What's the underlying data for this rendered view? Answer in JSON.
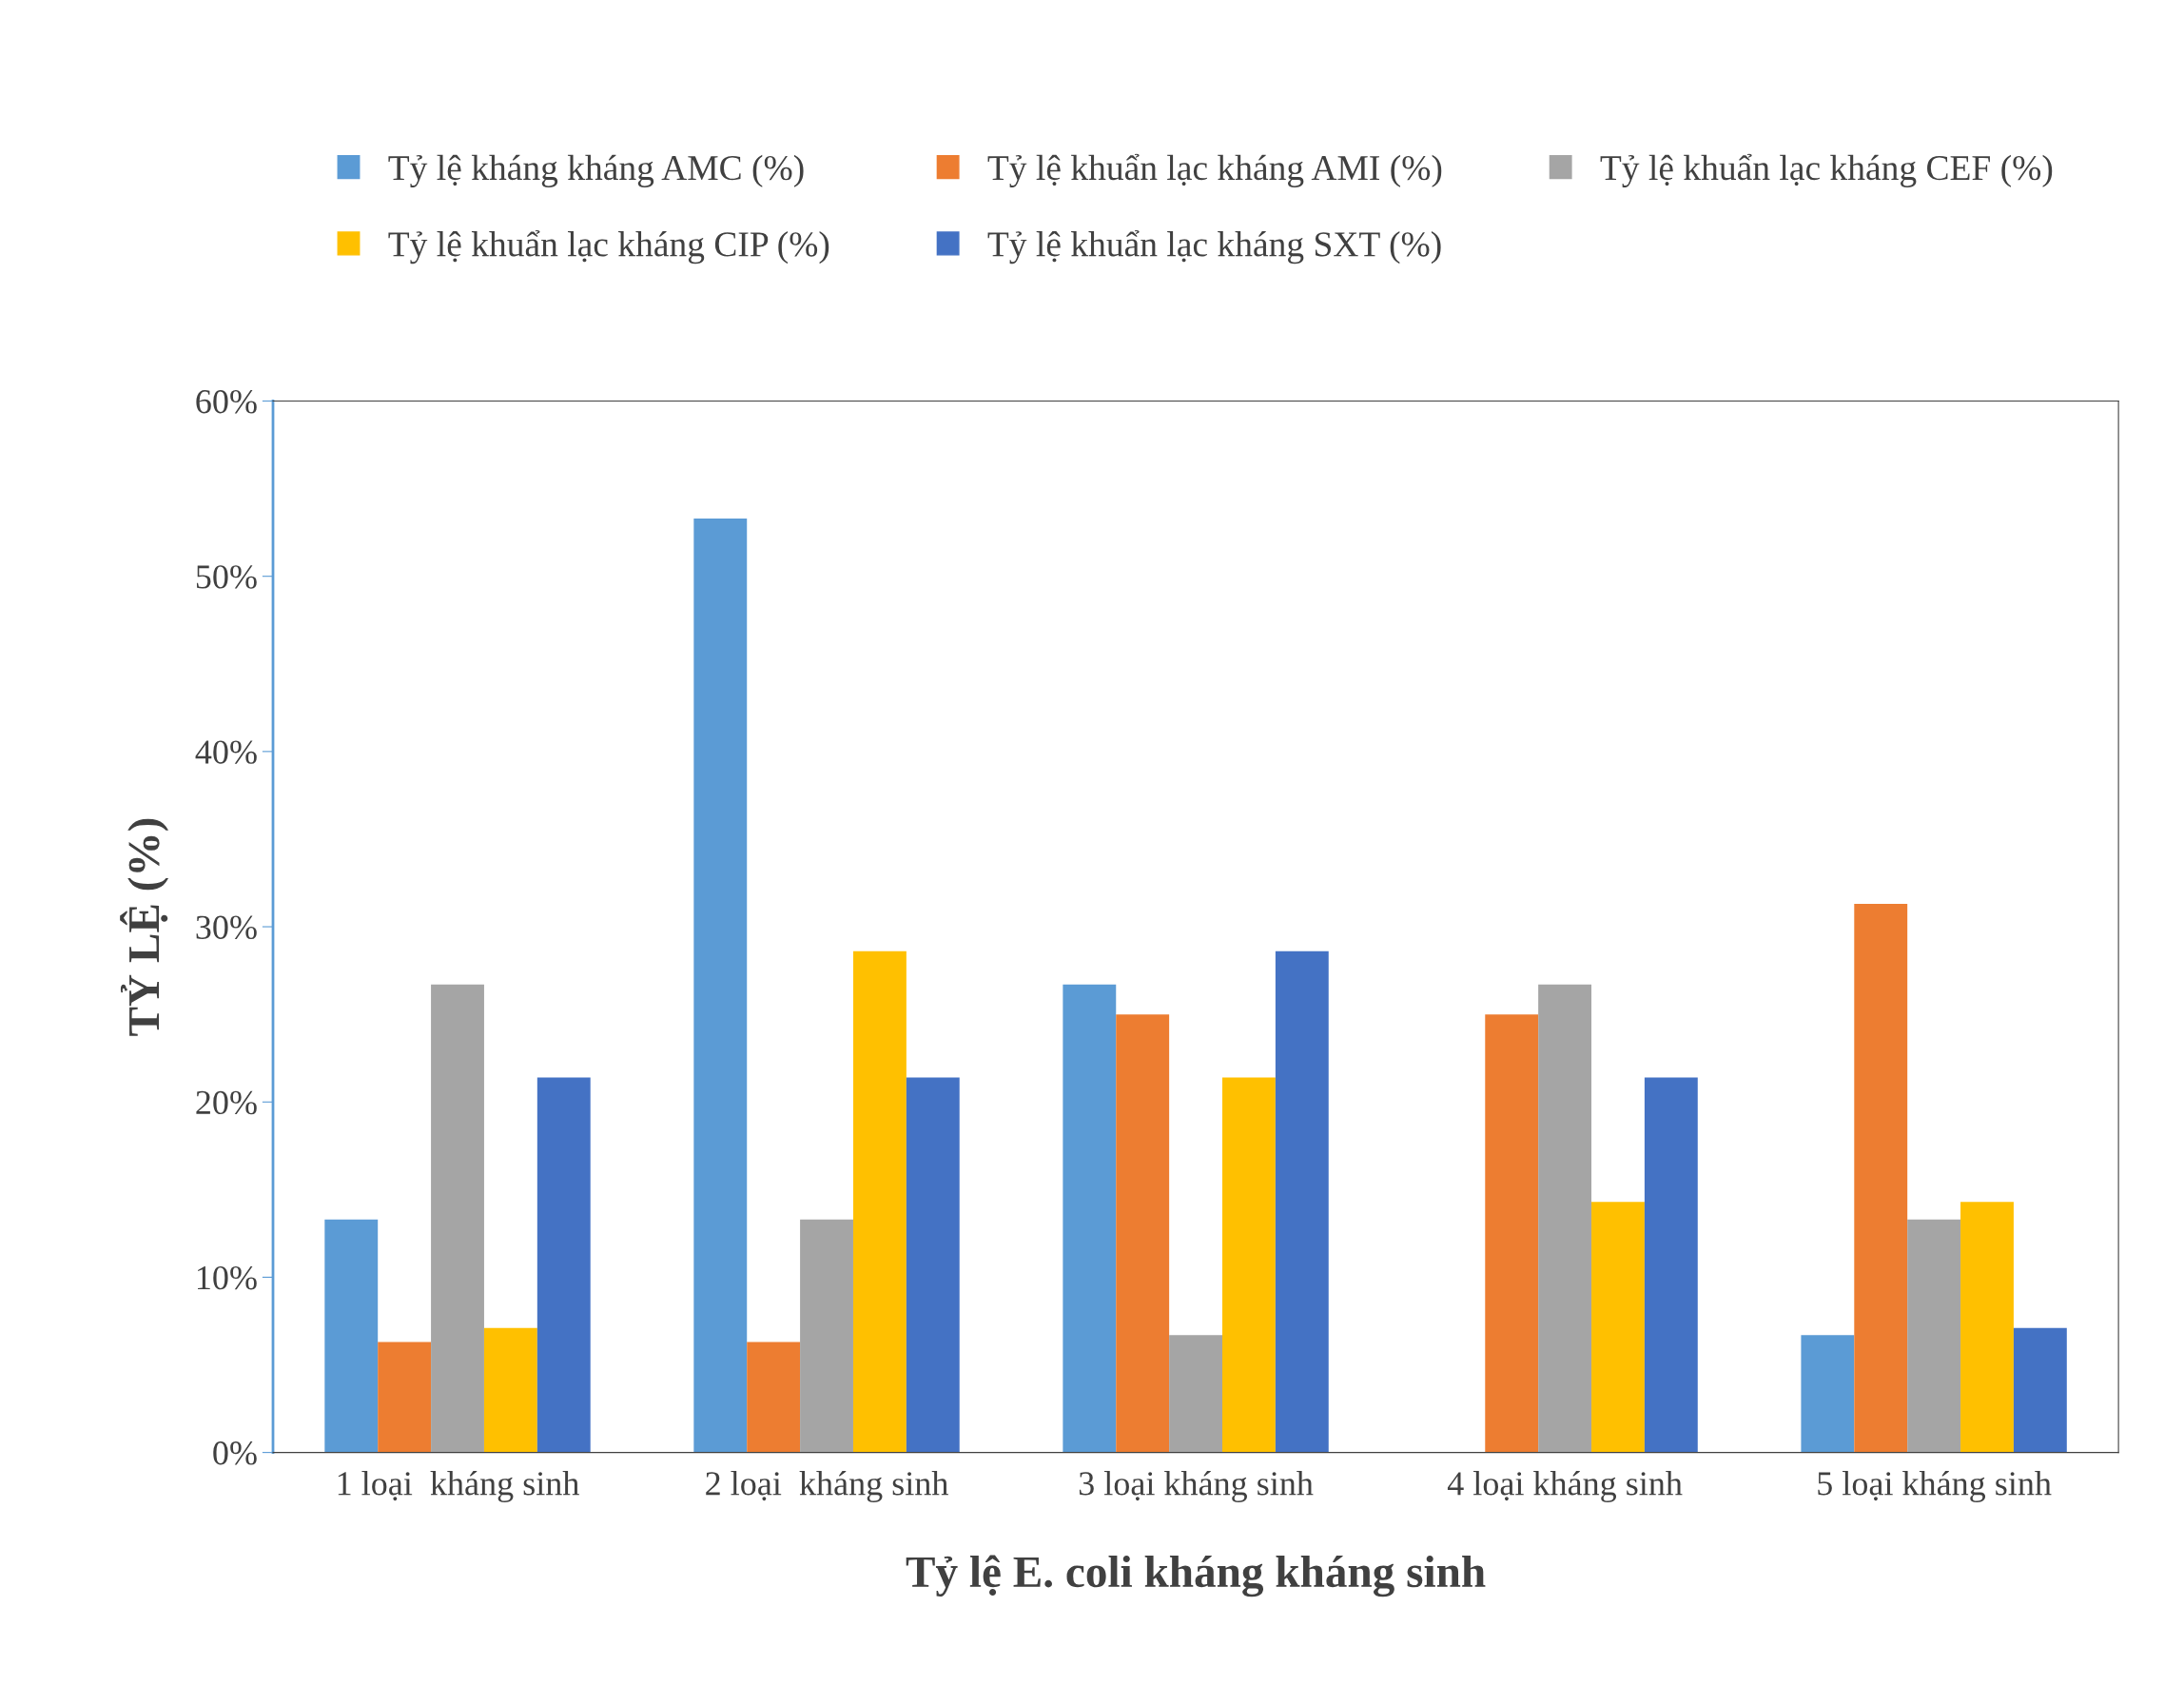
{
  "chart_data": {
    "type": "bar",
    "xlabel": "Tỷ lệ E. coli kháng kháng sinh",
    "ylabel": "TỶ LỆ (%)",
    "categories": [
      "1 loại  kháng sinh",
      "2 loại  kháng sinh",
      "3 loại kháng sinh",
      "4 loại kháng sinh",
      "5 loại kháng sinh"
    ],
    "series": [
      {
        "name": "Tỷ lệ kháng kháng AMC (%)",
        "color": "#5b9bd5",
        "values": [
          13.3,
          53.3,
          26.7,
          0,
          6.7
        ]
      },
      {
        "name": "Tỷ lệ khuẩn lạc kháng AMI (%)",
        "color": "#ed7d31",
        "values": [
          6.3,
          6.3,
          25.0,
          25.0,
          31.3
        ]
      },
      {
        "name": "Tỷ lệ khuẩn lạc kháng CEF (%)",
        "color": "#a5a5a5",
        "values": [
          26.7,
          13.3,
          6.7,
          26.7,
          13.3
        ]
      },
      {
        "name": "Tỷ lệ khuẩn lạc kháng CIP (%)",
        "color": "#ffc000",
        "values": [
          7.1,
          28.6,
          21.4,
          14.3,
          14.3
        ]
      },
      {
        "name": "Tỷ lệ khuẩn lạc kháng SXT (%)",
        "color": "#4472c4",
        "values": [
          21.4,
          21.4,
          28.6,
          21.4,
          7.1
        ]
      }
    ],
    "ylim": [
      0,
      60
    ],
    "yticks": [
      {
        "value": 0,
        "label": "0%"
      },
      {
        "value": 10,
        "label": "10%"
      },
      {
        "value": 20,
        "label": "20%"
      },
      {
        "value": 30,
        "label": "30%"
      },
      {
        "value": 40,
        "label": "40%"
      },
      {
        "value": 50,
        "label": "50%"
      },
      {
        "value": 60,
        "label": "60%"
      }
    ],
    "grid": false,
    "legend": "top"
  }
}
